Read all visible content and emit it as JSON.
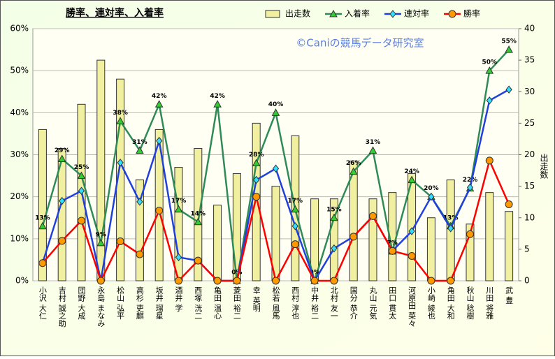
{
  "chart_data": {
    "type": "combo",
    "title": "勝率、連対率、入着率",
    "watermark": "©Caniの競馬データ研究室",
    "y2label": "出走数",
    "categories": [
      "小沢 大仁",
      "吉村 誠之助",
      "団野 大成",
      "永島 まなみ",
      "松山 弘平",
      "高杉 吏麒",
      "坂井 瑠星",
      "酒井 学",
      "西塚 洸二",
      "亀田 温心",
      "菱田 裕二",
      "幸 英明",
      "松若 風馬",
      "西村 淳也",
      "中井 裕二",
      "北村 友一",
      "国分 恭介",
      "丸山 元気",
      "田口 貫太",
      "河原田 菜々",
      "小崎 綾也",
      "角田 大和",
      "秋山 稔樹",
      "川田 将雅",
      "武 豊"
    ],
    "series": [
      {
        "name": "出走数",
        "type": "bar",
        "axis": "y2",
        "color": "#f0f0a0",
        "values": [
          24,
          21,
          28,
          35,
          32,
          16,
          24,
          18,
          21,
          12,
          17,
          25,
          15,
          23,
          13,
          13,
          19,
          13,
          14,
          17,
          10,
          16,
          9,
          14,
          11
        ]
      },
      {
        "name": "入着率",
        "type": "line",
        "marker": "triangle",
        "color": "#2e8b57",
        "marker_color": "#33cc33",
        "values": [
          13,
          29,
          25,
          9,
          38,
          31,
          42,
          17,
          14,
          42,
          0,
          28,
          40,
          17,
          0,
          15,
          26,
          31,
          7,
          24,
          20,
          13,
          22,
          50,
          55
        ],
        "value_labels": [
          "13%",
          "29%",
          "25%",
          "9%",
          "38%",
          "31%",
          "42%",
          "17%",
          "14%",
          "42%",
          "0%",
          "28%",
          "40%",
          "17%",
          "0%",
          "15%",
          "26%",
          "31%",
          "7%",
          "24%",
          "20%",
          "13%",
          "22%",
          "50%",
          "55%"
        ]
      },
      {
        "name": "連対率",
        "type": "line",
        "marker": "diamond",
        "color": "#1f3fdf",
        "marker_color": "#33ddff",
        "values": [
          4.2,
          19,
          21.4,
          0,
          28.1,
          18.8,
          33.3,
          5.6,
          4.8,
          0,
          0,
          24,
          26.7,
          13,
          0,
          7.7,
          10.5,
          15.4,
          7.1,
          11.8,
          20,
          12.5,
          22.2,
          42.9,
          45.5
        ]
      },
      {
        "name": "勝率",
        "type": "line",
        "marker": "circle",
        "color": "#ff0000",
        "marker_color": "#ff9900",
        "values": [
          4.2,
          9.5,
          14.3,
          0,
          9.4,
          6.3,
          16.7,
          0,
          4.8,
          0,
          0,
          20,
          0,
          8.7,
          0,
          0,
          10.5,
          15.4,
          7.1,
          5.9,
          0,
          0,
          11.1,
          28.6,
          18.2
        ]
      }
    ],
    "ylim": [
      0,
      60
    ],
    "yticks": [
      {
        "value": 0,
        "label": "0%"
      },
      {
        "value": 10,
        "label": "10%"
      },
      {
        "value": 20,
        "label": "20%"
      },
      {
        "value": 30,
        "label": "30%"
      },
      {
        "value": 40,
        "label": "40%"
      },
      {
        "value": 50,
        "label": "50%"
      },
      {
        "value": 60,
        "label": "60%"
      }
    ],
    "y2lim": [
      0,
      40
    ],
    "y2ticks": [
      0,
      5,
      10,
      15,
      20,
      25,
      30,
      35,
      40
    ],
    "grid": true
  }
}
